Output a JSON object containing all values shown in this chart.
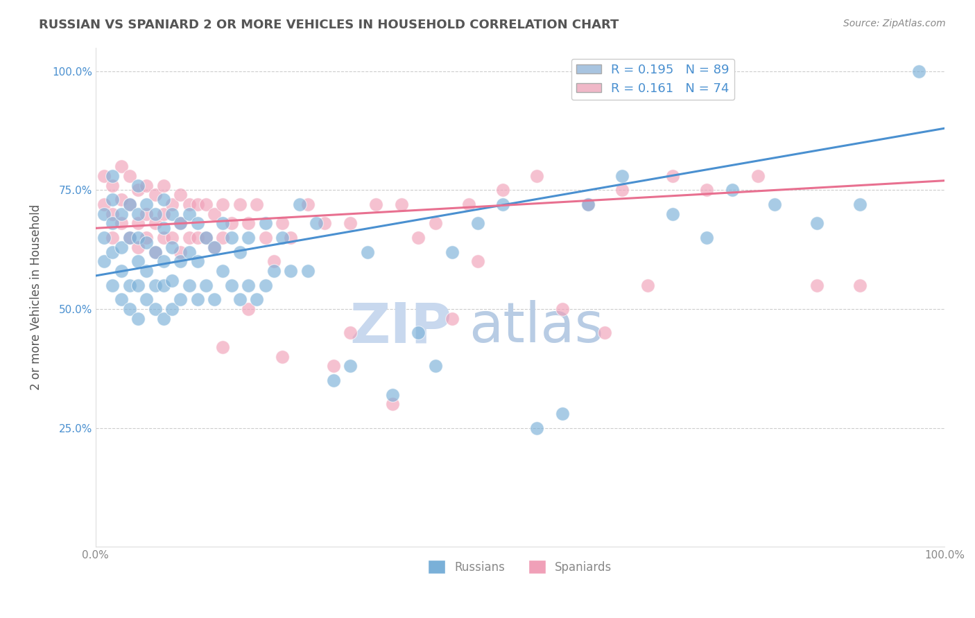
{
  "title": "RUSSIAN VS SPANIARD 2 OR MORE VEHICLES IN HOUSEHOLD CORRELATION CHART",
  "source_text": "Source: ZipAtlas.com",
  "ylabel": "2 or more Vehicles in Household",
  "xmin": 0.0,
  "xmax": 1.0,
  "ymin": 0.0,
  "ymax": 1.05,
  "x_tick_labels": [
    "0.0%",
    "100.0%"
  ],
  "y_tick_labels": [
    "25.0%",
    "50.0%",
    "75.0%",
    "100.0%"
  ],
  "y_tick_positions": [
    0.25,
    0.5,
    0.75,
    1.0
  ],
  "legend_entries": [
    {
      "label": "R = 0.195   N = 89",
      "color": "#a8c4e0"
    },
    {
      "label": "R = 0.161   N = 74",
      "color": "#f0b8c8"
    }
  ],
  "watermark_text": "ZIPatlas",
  "watermark_color": "#ccd9ee",
  "russian_color": "#7ab0d8",
  "spaniard_color": "#f0a0b8",
  "russian_line_color": "#4a90d0",
  "spaniard_line_color": "#e87090",
  "background_color": "#ffffff",
  "grid_color": "#cccccc",
  "title_color": "#555555",
  "axis_label_color": "#555555",
  "tick_color": "#888888",
  "R_russian": 0.195,
  "N_russian": 89,
  "R_spaniard": 0.161,
  "N_spaniard": 74,
  "russian_line_x0": 0.0,
  "russian_line_y0": 0.57,
  "russian_line_x1": 1.0,
  "russian_line_y1": 0.88,
  "spaniard_line_x0": 0.0,
  "spaniard_line_y0": 0.67,
  "spaniard_line_x1": 1.0,
  "spaniard_line_y1": 0.77,
  "russian_scatter_x": [
    0.01,
    0.01,
    0.01,
    0.02,
    0.02,
    0.02,
    0.02,
    0.02,
    0.03,
    0.03,
    0.03,
    0.03,
    0.04,
    0.04,
    0.04,
    0.04,
    0.05,
    0.05,
    0.05,
    0.05,
    0.05,
    0.05,
    0.06,
    0.06,
    0.06,
    0.06,
    0.07,
    0.07,
    0.07,
    0.07,
    0.08,
    0.08,
    0.08,
    0.08,
    0.08,
    0.09,
    0.09,
    0.09,
    0.09,
    0.1,
    0.1,
    0.1,
    0.11,
    0.11,
    0.11,
    0.12,
    0.12,
    0.12,
    0.13,
    0.13,
    0.14,
    0.14,
    0.15,
    0.15,
    0.16,
    0.16,
    0.17,
    0.17,
    0.18,
    0.18,
    0.19,
    0.2,
    0.2,
    0.21,
    0.22,
    0.23,
    0.24,
    0.25,
    0.26,
    0.28,
    0.3,
    0.32,
    0.35,
    0.38,
    0.4,
    0.42,
    0.45,
    0.48,
    0.52,
    0.55,
    0.58,
    0.62,
    0.68,
    0.72,
    0.75,
    0.8,
    0.85,
    0.9,
    0.97
  ],
  "russian_scatter_y": [
    0.6,
    0.65,
    0.7,
    0.55,
    0.62,
    0.68,
    0.73,
    0.78,
    0.52,
    0.58,
    0.63,
    0.7,
    0.5,
    0.55,
    0.65,
    0.72,
    0.48,
    0.55,
    0.6,
    0.65,
    0.7,
    0.76,
    0.52,
    0.58,
    0.64,
    0.72,
    0.5,
    0.55,
    0.62,
    0.7,
    0.48,
    0.55,
    0.6,
    0.67,
    0.73,
    0.5,
    0.56,
    0.63,
    0.7,
    0.52,
    0.6,
    0.68,
    0.55,
    0.62,
    0.7,
    0.52,
    0.6,
    0.68,
    0.55,
    0.65,
    0.52,
    0.63,
    0.58,
    0.68,
    0.55,
    0.65,
    0.52,
    0.62,
    0.55,
    0.65,
    0.52,
    0.55,
    0.68,
    0.58,
    0.65,
    0.58,
    0.72,
    0.58,
    0.68,
    0.35,
    0.38,
    0.62,
    0.32,
    0.45,
    0.38,
    0.62,
    0.68,
    0.72,
    0.25,
    0.28,
    0.72,
    0.78,
    0.7,
    0.65,
    0.75,
    0.72,
    0.68,
    0.72,
    1.0
  ],
  "spaniard_scatter_x": [
    0.01,
    0.01,
    0.02,
    0.02,
    0.02,
    0.03,
    0.03,
    0.03,
    0.04,
    0.04,
    0.04,
    0.05,
    0.05,
    0.05,
    0.06,
    0.06,
    0.06,
    0.07,
    0.07,
    0.07,
    0.08,
    0.08,
    0.08,
    0.09,
    0.09,
    0.1,
    0.1,
    0.1,
    0.11,
    0.11,
    0.12,
    0.12,
    0.13,
    0.13,
    0.14,
    0.14,
    0.15,
    0.15,
    0.16,
    0.17,
    0.18,
    0.19,
    0.2,
    0.21,
    0.22,
    0.23,
    0.25,
    0.27,
    0.3,
    0.33,
    0.36,
    0.4,
    0.44,
    0.48,
    0.52,
    0.58,
    0.62,
    0.68,
    0.72,
    0.78,
    0.85,
    0.3,
    0.22,
    0.28,
    0.35,
    0.18,
    0.42,
    0.45,
    0.15,
    0.55,
    0.6,
    0.65,
    0.9,
    0.38
  ],
  "spaniard_scatter_y": [
    0.72,
    0.78,
    0.65,
    0.7,
    0.76,
    0.68,
    0.73,
    0.8,
    0.65,
    0.72,
    0.78,
    0.63,
    0.68,
    0.75,
    0.65,
    0.7,
    0.76,
    0.62,
    0.68,
    0.74,
    0.65,
    0.7,
    0.76,
    0.65,
    0.72,
    0.62,
    0.68,
    0.74,
    0.65,
    0.72,
    0.65,
    0.72,
    0.65,
    0.72,
    0.63,
    0.7,
    0.65,
    0.72,
    0.68,
    0.72,
    0.68,
    0.72,
    0.65,
    0.6,
    0.68,
    0.65,
    0.72,
    0.68,
    0.68,
    0.72,
    0.72,
    0.68,
    0.72,
    0.75,
    0.78,
    0.72,
    0.75,
    0.78,
    0.75,
    0.78,
    0.55,
    0.45,
    0.4,
    0.38,
    0.3,
    0.5,
    0.48,
    0.6,
    0.42,
    0.5,
    0.45,
    0.55,
    0.55,
    0.65
  ]
}
